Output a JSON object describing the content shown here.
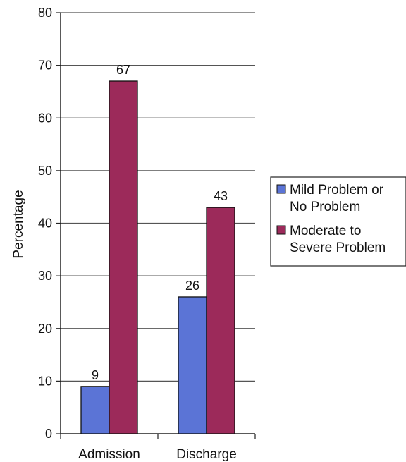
{
  "chart_data": {
    "type": "bar",
    "title": "",
    "xlabel": "",
    "ylabel": "Percentage",
    "ylim": [
      0,
      80
    ],
    "yticks": [
      0,
      10,
      20,
      30,
      40,
      50,
      60,
      70,
      80
    ],
    "categories": [
      "Admission",
      "Discharge"
    ],
    "series": [
      {
        "name": "Mild Problem or No Problem",
        "legend_lines": [
          "Mild Problem or",
          "No Problem"
        ],
        "values": [
          9,
          26
        ],
        "color": "#5b74d6"
      },
      {
        "name": "Moderate to Severe Problem",
        "legend_lines": [
          "Moderate to",
          "Severe Problem"
        ],
        "values": [
          67,
          43
        ],
        "color": "#9c2a5a"
      }
    ],
    "grid": true,
    "legend_position": "right"
  }
}
